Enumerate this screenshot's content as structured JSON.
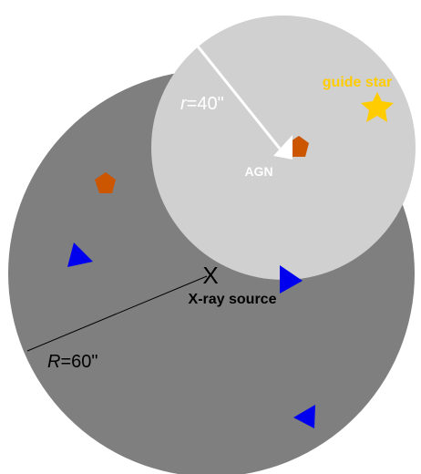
{
  "labels": {
    "big_radius_var": "R",
    "big_radius_val": "=60\"",
    "small_radius_var": "r",
    "small_radius_val": "=40\"",
    "xray_marker": "X",
    "xray_source": "X-ray source",
    "agn": "AGN",
    "guide_star": "guide star"
  },
  "colors": {
    "big_circle": "#7f7f7f",
    "small_circle": "#d0d0d0",
    "pentagon": "#cc5500",
    "triangle": "#0000ee",
    "star": "#ffcc00",
    "guide_star_text": "#ffcc00",
    "small_radius_text": "#ffffff"
  }
}
